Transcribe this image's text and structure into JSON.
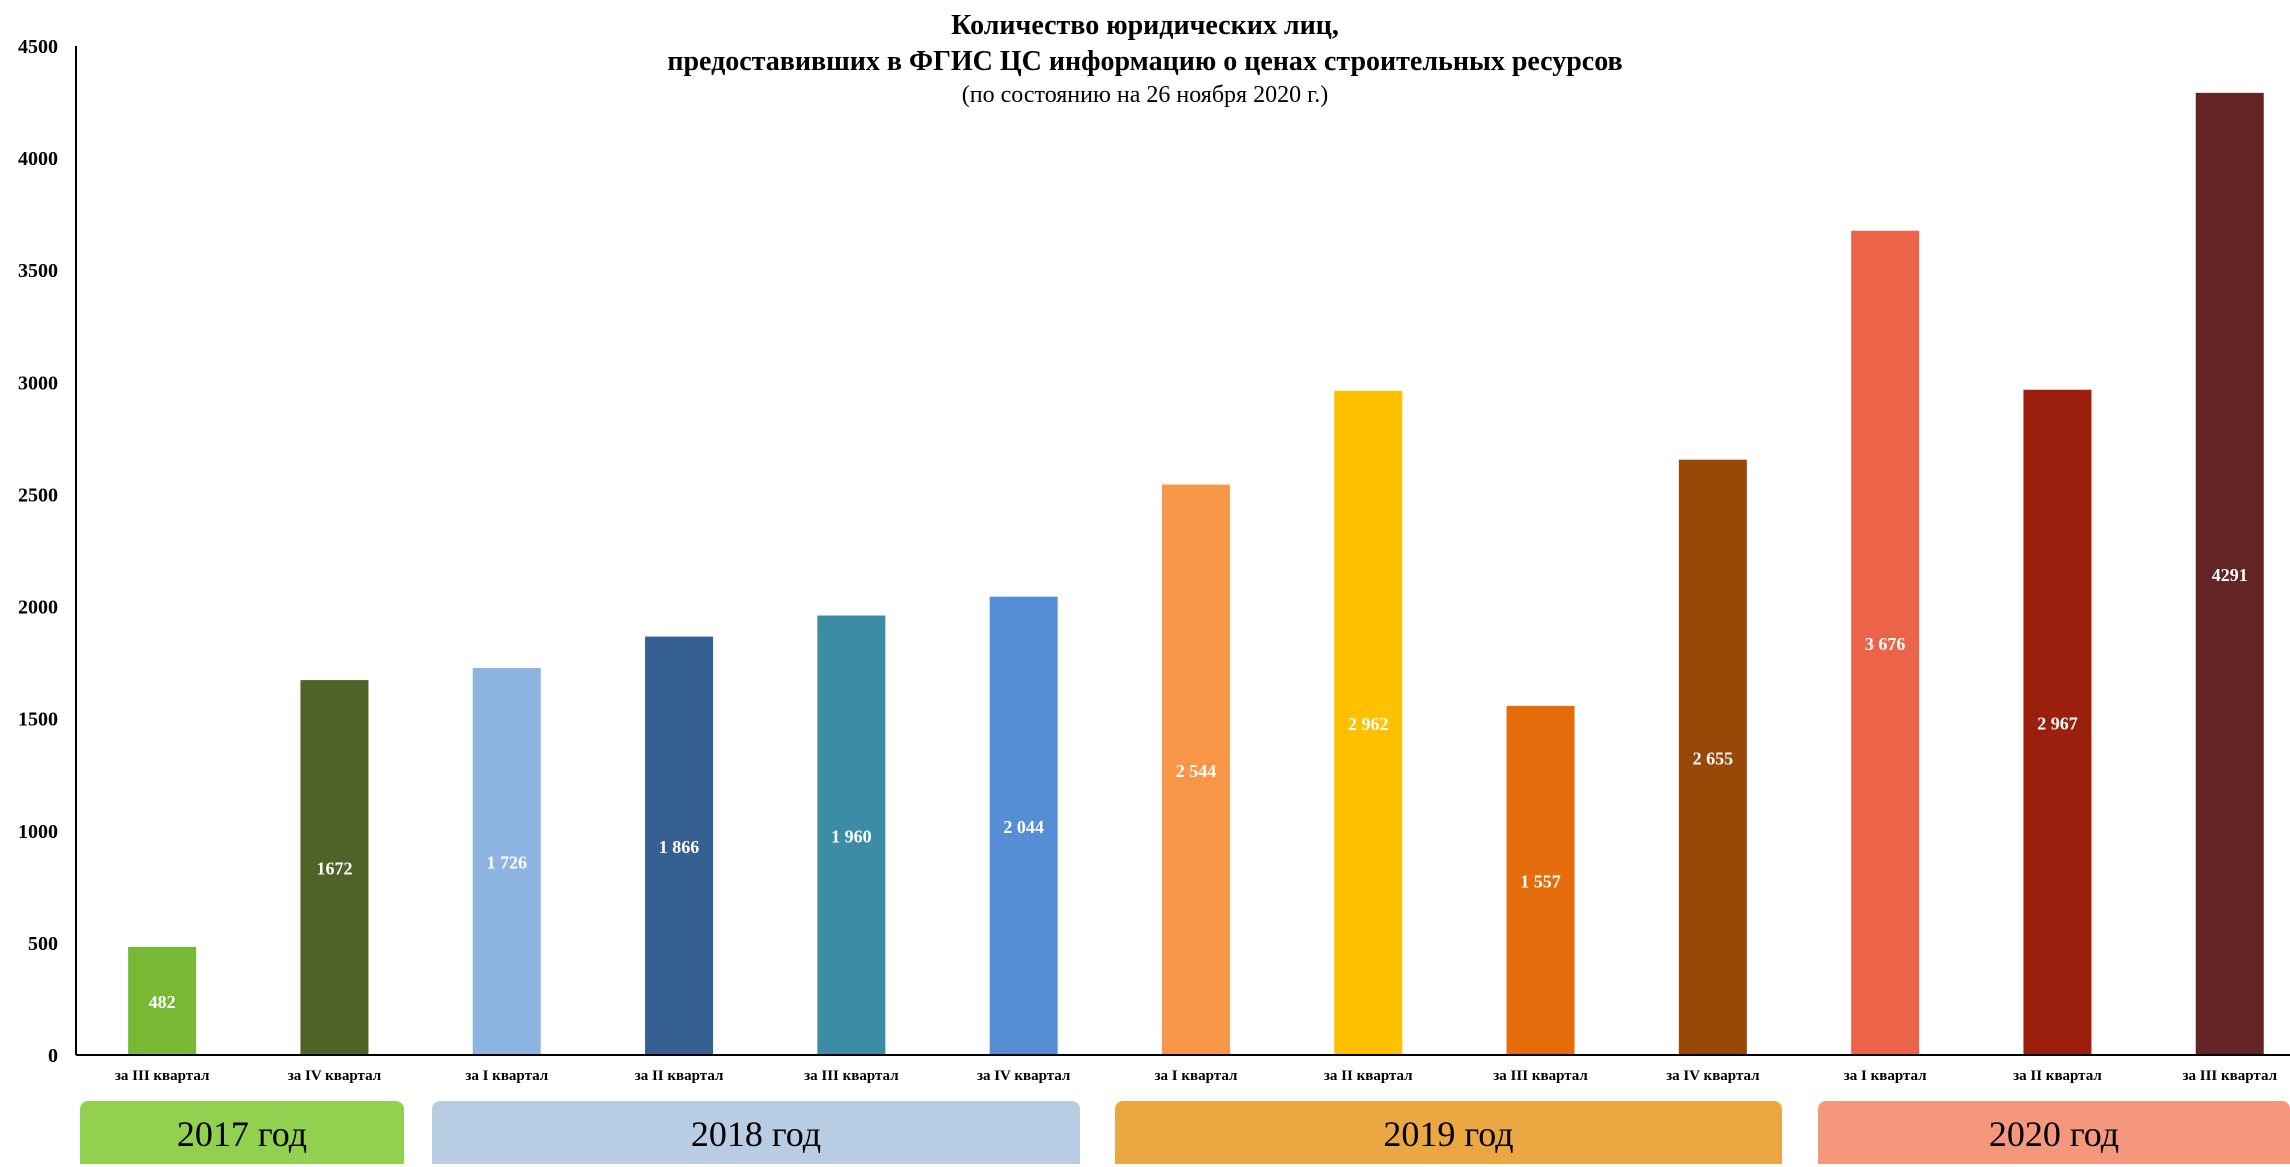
{
  "title": {
    "line1": "Количество юридических лиц,",
    "line2": "предоставивших в ФГИС ЦС информацию о ценах строительных ресурсов",
    "subtitle": "(по состоянию на 26 ноября 2020 г.)"
  },
  "year_groups": [
    {
      "label": "2017 год",
      "color": "#92D050"
    },
    {
      "label": "2018 год",
      "color": "#B8CCE4"
    },
    {
      "label": "2019 год",
      "color": "#EBA842"
    },
    {
      "label": "2020 год",
      "color": "#F4977C"
    }
  ],
  "chart_data": {
    "type": "bar",
    "categories": [
      "за III квартал",
      "за IV квартал",
      "за I квартал",
      "за II квартал",
      "за III квартал",
      "за IV квартал",
      "за I квартал",
      "за II квартал",
      "за III квартал",
      "за IV квартал",
      "за I квартал",
      "за II квартал",
      "за III квартал"
    ],
    "values": [
      482,
      1672,
      1726,
      1866,
      1960,
      2044,
      2544,
      2962,
      1557,
      2655,
      3676,
      2967,
      4291
    ],
    "data_labels": [
      "482",
      "1672",
      "1 726",
      "1 866",
      "1 960",
      "2 044",
      "2 544",
      "2 962",
      "1 557",
      "2 655",
      "3 676",
      "2 967",
      "4291"
    ],
    "colors": [
      "#77B835",
      "#4F6228",
      "#8EB4E3",
      "#366092",
      "#3C8CA6",
      "#558ED5",
      "#F79646",
      "#FFC000",
      "#E46C0A",
      "#984807",
      "#EC6448",
      "#9C1E0C",
      "#632523"
    ],
    "ylim": [
      0,
      4500
    ],
    "yticks": [
      0,
      500,
      1000,
      1500,
      2000,
      2500,
      3000,
      3500,
      4000,
      4500
    ],
    "grid": false,
    "legend": "none"
  }
}
